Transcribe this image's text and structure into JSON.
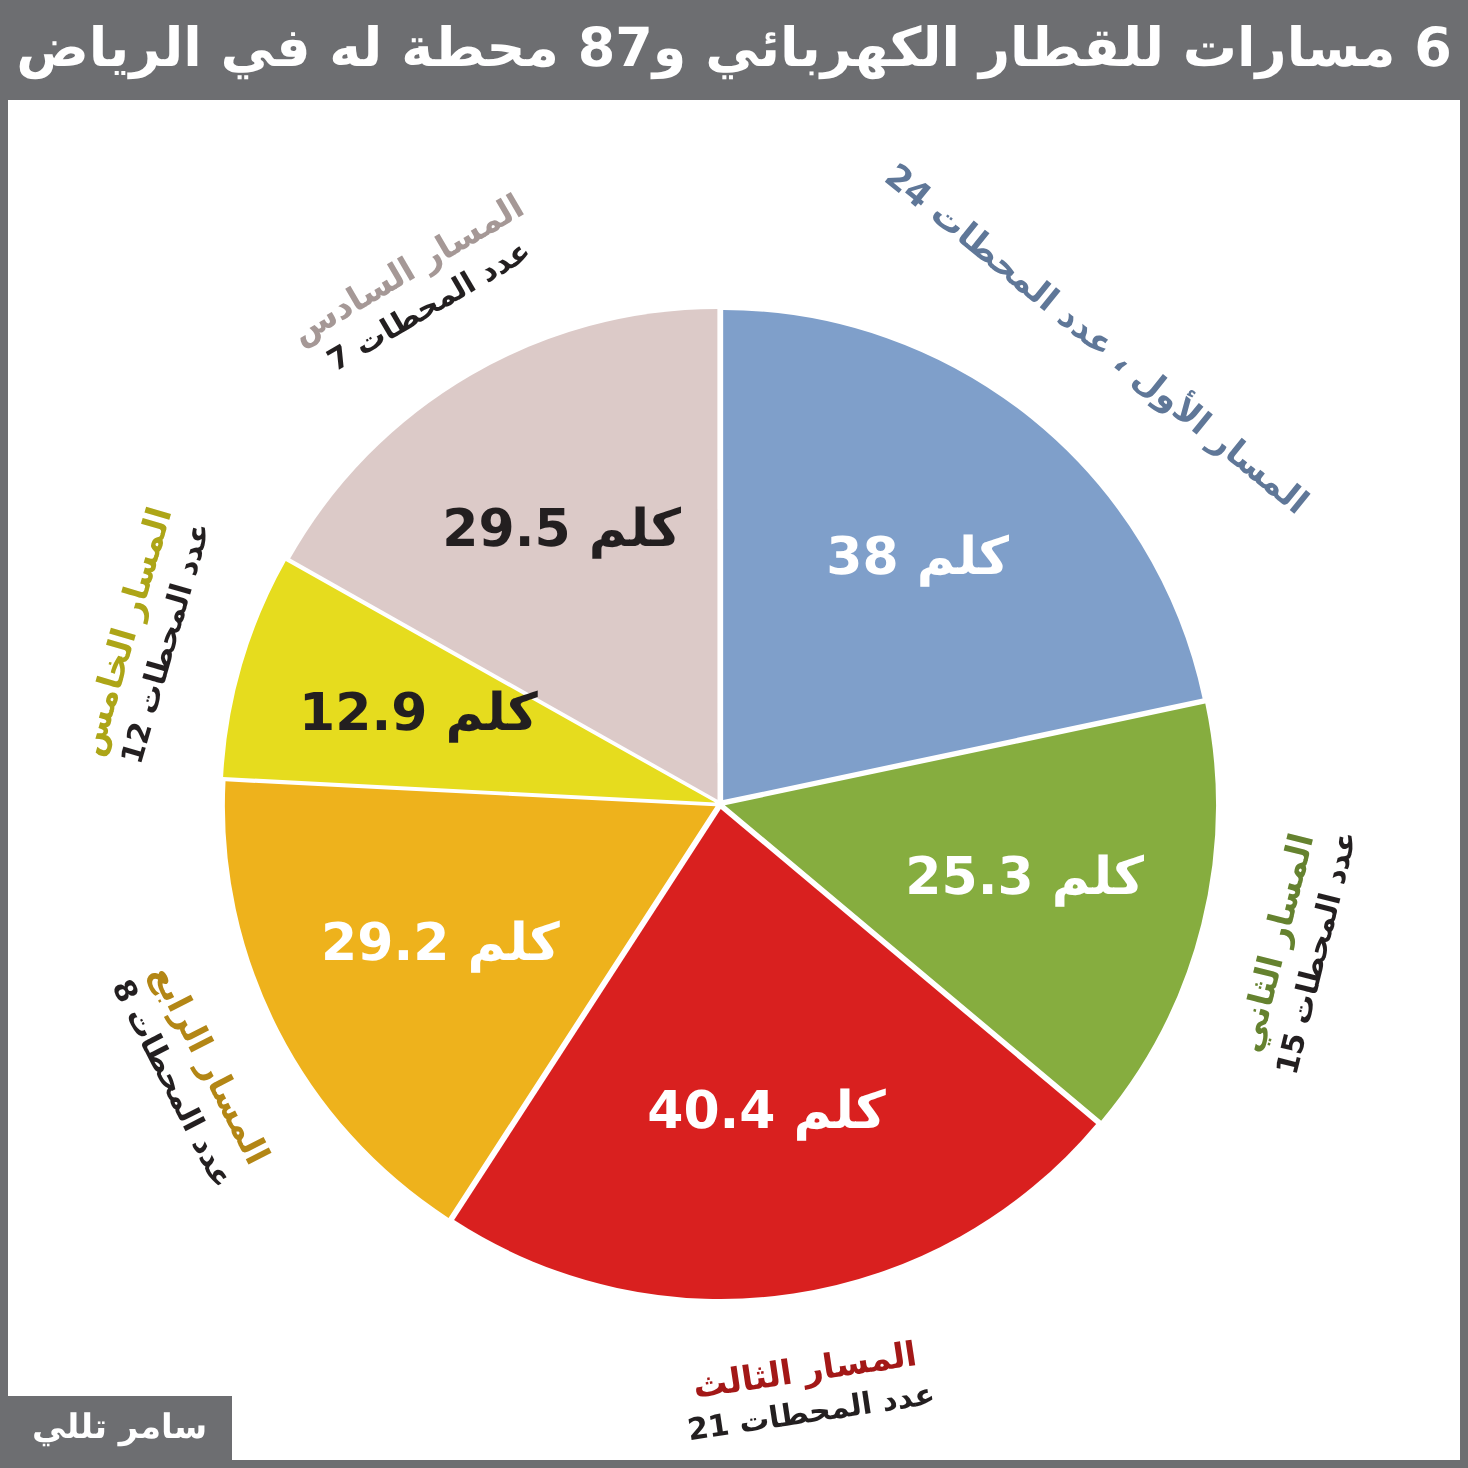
{
  "chart_data": {
    "type": "pie",
    "title": "6 مسارات للقطار الكهربائي و87 محطة له في الرياض",
    "categories": [
      "المسار الأول ، عدد المحطات 24",
      "المسار الثاني\nعدد المحطات 15",
      "المسار الثالث\nعدد المحطات 21",
      "المسار الرابع\nعدد المحطات 8",
      "المسار الخامس\nعدد المحطات 12",
      "المسار السادس\nعدد المحطات 7"
    ],
    "values": [
      38,
      25.3,
      40.4,
      29.2,
      12.9,
      29.5
    ],
    "colors": [
      "#7f9fca",
      "#86ad3f",
      "#d9201f",
      "#eeb21c",
      "#e6dc1e",
      "#dccac8"
    ],
    "value_labels": [
      "38 كلم",
      "25.3 كلم",
      "40.4 كلم",
      "29.2 كلم",
      "12.9 كلم",
      "29.5 كلم"
    ],
    "legend": false,
    "annotations": [
      "سامر تللي"
    ]
  }
}
